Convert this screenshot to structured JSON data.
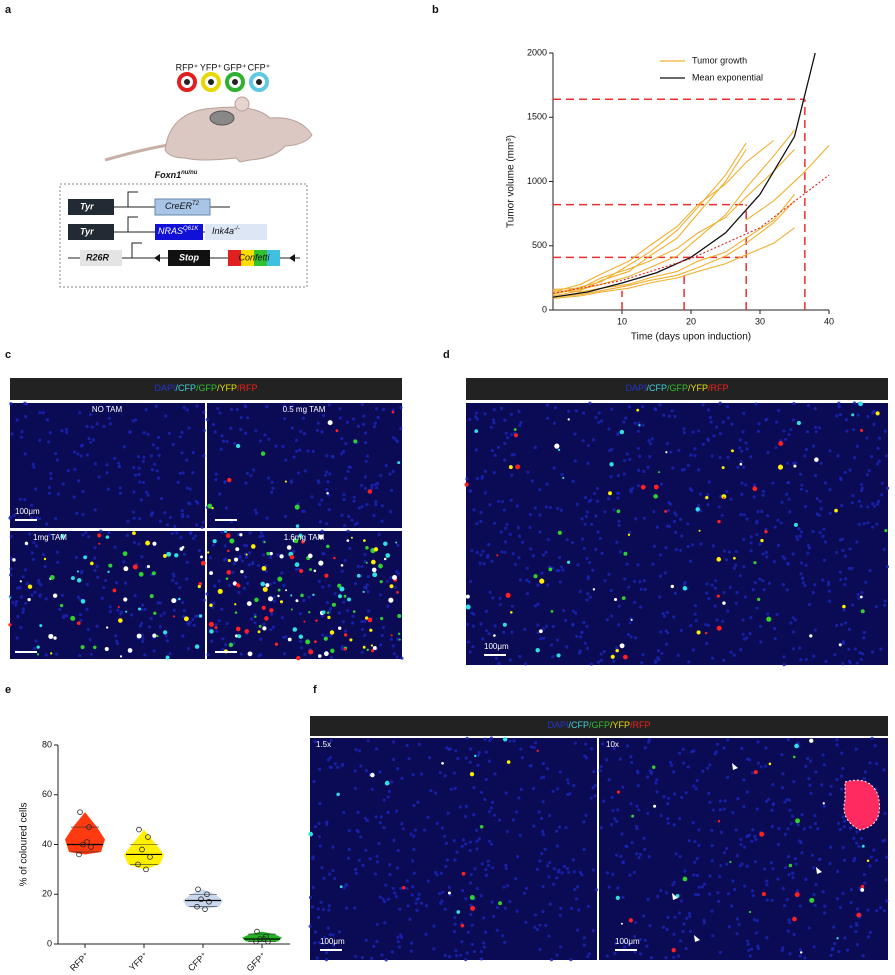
{
  "figure": {
    "panel_labels": [
      "a",
      "b",
      "c",
      "d",
      "e",
      "f"
    ],
    "markers": [
      "RFP⁺",
      "YFP⁺",
      "GFP⁺",
      "CFP⁺"
    ],
    "marker_colors": [
      "#e02020",
      "#e6d800",
      "#30b030",
      "#60c8e0"
    ],
    "strain": {
      "base": "Foxn1",
      "sup": "nu/nu"
    },
    "constructs": {
      "row1": {
        "promoter": "Tyr",
        "gene": {
          "base": "CreER",
          "sup": "T2"
        }
      },
      "row2": {
        "promoter": "Tyr",
        "gene": {
          "base": "NRAS",
          "sup": "Q61K"
        },
        "extra": {
          "base": "Ink4a",
          "sup": "-/-"
        }
      },
      "row3": {
        "promoter": "R26R",
        "stop": "Stop",
        "reporter": "Confetti"
      }
    },
    "channels": [
      "DAPI",
      "/CFP",
      "/GFP",
      "/YFP",
      "/RFP"
    ],
    "channel_colors": [
      "#2233cc",
      "#40d0e0",
      "#30c030",
      "#e6e000",
      "#ee2020"
    ],
    "panel_c": {
      "labels": [
        "NO TAM",
        "0.5 mg TAM",
        "1mg TAM",
        "1.6mg TAM"
      ],
      "scale": "100μm"
    },
    "panel_d": {
      "scale": "100μm"
    },
    "panel_f": {
      "labels": [
        "1.5x",
        "10x"
      ],
      "scales": [
        "100μm",
        "100μm"
      ]
    }
  },
  "chart_data": [
    {
      "type": "line",
      "xlabel": "Time (days upon induction)",
      "ylabel": "Tumor volume (mm³)",
      "xlim": [
        0,
        40
      ],
      "xticks": [
        10,
        20,
        30,
        40
      ],
      "ylim": [
        0,
        2000
      ],
      "yticks": [
        0,
        500,
        1000,
        1500,
        2000
      ],
      "guides": {
        "color": "#e83030",
        "h": [
          {
            "y": 410,
            "x": 28
          },
          {
            "y": 820,
            "x": 28
          },
          {
            "y": 1640,
            "x": 36.5
          }
        ],
        "v": [
          {
            "x": 10,
            "y": 150
          },
          {
            "x": 19,
            "y": 300
          },
          {
            "x": 28,
            "y": 820
          },
          {
            "x": 36.5,
            "y": 1640
          }
        ]
      },
      "series": [
        {
          "name": "Tumor growth",
          "color": "#f0b030",
          "x": [
            0,
            4,
            7,
            11,
            14,
            18,
            21,
            25,
            28,
            32,
            35
          ],
          "values": [
            130,
            160,
            200,
            260,
            330,
            420,
            560,
            740,
            950,
            1200,
            1400
          ]
        },
        {
          "color": "#f0b030",
          "x": [
            0,
            4,
            7,
            11,
            14,
            18,
            21,
            25,
            28,
            32,
            35
          ],
          "values": [
            110,
            150,
            230,
            300,
            420,
            560,
            750,
            1000,
            1250,
            null,
            null
          ]
        },
        {
          "color": "#f0b030",
          "x": [
            0,
            4,
            7,
            11,
            14,
            18,
            21,
            25,
            28,
            32,
            35
          ],
          "values": [
            150,
            140,
            170,
            200,
            250,
            300,
            380,
            450,
            560,
            700,
            900
          ]
        },
        {
          "color": "#f0b030",
          "x": [
            0,
            4,
            7,
            11,
            14,
            18,
            21,
            25,
            28,
            32,
            35
          ],
          "values": [
            120,
            180,
            220,
            350,
            450,
            620,
            800,
            1050,
            1300,
            null,
            null
          ]
        },
        {
          "color": "#f0b030",
          "x": [
            0,
            4,
            7,
            11,
            14,
            18,
            21,
            25,
            28,
            32,
            35
          ],
          "values": [
            100,
            120,
            150,
            190,
            230,
            270,
            330,
            420,
            520,
            680,
            850
          ]
        },
        {
          "color": "#f0b030",
          "x": [
            0,
            4,
            7,
            11,
            14,
            18,
            21,
            25,
            28,
            32,
            35
          ],
          "values": [
            140,
            200,
            280,
            380,
            500,
            650,
            820,
            980,
            1150,
            1320,
            null
          ]
        },
        {
          "color": "#f0b030",
          "x": [
            0,
            4,
            7,
            11,
            14,
            18,
            21,
            25,
            28,
            32,
            35
          ],
          "values": [
            90,
            110,
            140,
            170,
            210,
            250,
            300,
            360,
            430,
            520,
            640
          ]
        },
        {
          "color": "#f0b030",
          "x": [
            0,
            4,
            7,
            11,
            14,
            18,
            21,
            25,
            28,
            32,
            35
          ],
          "values": [
            160,
            170,
            250,
            320,
            380,
            480,
            600,
            720,
            880,
            1080,
            1250
          ]
        },
        {
          "color": "#f0b030",
          "x": [
            28,
            32,
            36,
            40
          ],
          "values": [
            700,
            850,
            1050,
            1280
          ]
        },
        {
          "name": "Mean exponential",
          "color": "#111111",
          "x": [
            0,
            5,
            10,
            15,
            20,
            25,
            30,
            35,
            38
          ],
          "values": [
            100,
            140,
            210,
            290,
            410,
            600,
            900,
            1350,
            2000
          ]
        },
        {
          "color": "#dd2222",
          "dashed": true,
          "x": [
            0,
            10,
            20,
            30,
            40
          ],
          "values": [
            130,
            230,
            400,
            640,
            1050
          ]
        }
      ]
    },
    {
      "type": "violin",
      "ylabel": "% of coloured cells",
      "categories": [
        "RFP⁺",
        "YFP⁺",
        "CFP⁺",
        "GFP⁺"
      ],
      "colors": [
        "#ff3a10",
        "#fff000",
        "#c8d8ee",
        "#22b422"
      ],
      "values": [
        [
          53,
          47,
          40,
          39,
          36,
          41
        ],
        [
          46,
          43,
          38,
          35,
          32,
          30
        ],
        [
          22,
          20,
          18,
          17,
          15,
          14
        ],
        [
          5,
          3,
          2,
          1,
          1,
          2
        ]
      ],
      "medians": [
        40,
        36,
        17.5,
        2
      ],
      "quartiles": [
        [
          37,
          47
        ],
        [
          32,
          40
        ],
        [
          15,
          20
        ],
        [
          1,
          4
        ]
      ],
      "ylim": [
        0,
        80
      ],
      "yticks": [
        0,
        20,
        40,
        60,
        80
      ]
    }
  ]
}
